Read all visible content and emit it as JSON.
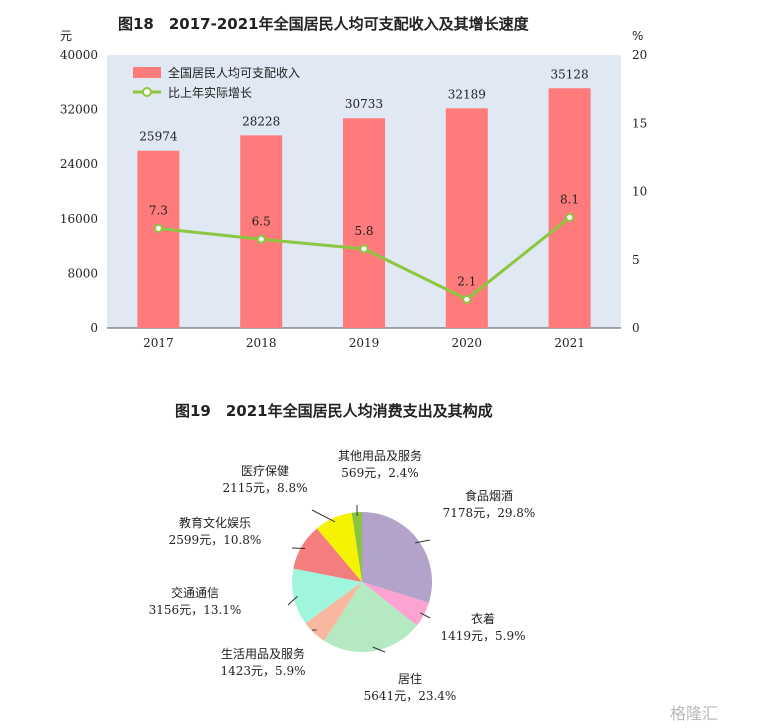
{
  "chart_data": [
    {
      "type": "bar+line",
      "title": "图18　2017-2021年全国居民人均可支配收入及其增长速度",
      "categories": [
        "2017",
        "2018",
        "2019",
        "2020",
        "2021"
      ],
      "left_unit": "元",
      "right_unit": "%",
      "left_ticks": [
        "0",
        "8000",
        "16000",
        "24000",
        "32000",
        "40000"
      ],
      "right_ticks": [
        "0",
        "5",
        "10",
        "15",
        "20"
      ],
      "ylim_left": [
        0,
        40000
      ],
      "ylim_right": [
        0,
        20
      ],
      "series": [
        {
          "name": "全国居民人均可支配收入",
          "kind": "bar",
          "axis": "left",
          "values": [
            25974,
            28228,
            30733,
            32189,
            35128
          ],
          "labels": [
            "25974",
            "28228",
            "30733",
            "32189",
            "35128"
          ]
        },
        {
          "name": "比上年实际增长",
          "kind": "line",
          "axis": "right",
          "values": [
            7.3,
            6.5,
            5.8,
            2.1,
            8.1
          ],
          "labels": [
            "7.3",
            "6.5",
            "5.8",
            "2.1",
            "8.1"
          ]
        }
      ],
      "legend_position": "top-left",
      "colors": {
        "bar": "#fe7b7b",
        "line": "#8dc63f",
        "plot_bg": "#dfe8f3"
      }
    },
    {
      "type": "pie",
      "title": "图19　2021年全国居民人均消费支出及其构成",
      "slices": [
        {
          "name": "食品烟酒",
          "value": 7178,
          "percent": 29.8,
          "text": "7178元，29.8%",
          "color": "#b3a2c9"
        },
        {
          "name": "衣着",
          "value": 1419,
          "percent": 5.9,
          "text": "1419元，5.9%",
          "color": "#fca3d2"
        },
        {
          "name": "居住",
          "value": 5641,
          "percent": 23.4,
          "text": "5641元，23.4%",
          "color": "#b4e9c1"
        },
        {
          "name": "生活用品及服务",
          "value": 1423,
          "percent": 5.9,
          "text": "1423元，5.9%",
          "color": "#f8b8a0"
        },
        {
          "name": "交通通信",
          "value": 3156,
          "percent": 13.1,
          "text": "3156元，13.1%",
          "color": "#9ff6dc"
        },
        {
          "name": "教育文化娱乐",
          "value": 2599,
          "percent": 10.8,
          "text": "2599元，10.8%",
          "color": "#f47e7e"
        },
        {
          "name": "医疗保健",
          "value": 2115,
          "percent": 8.8,
          "text": "2115元，8.8%",
          "color": "#f5f301"
        },
        {
          "name": "其他用品及服务",
          "value": 569,
          "percent": 2.4,
          "text": "569元，2.4%",
          "color": "#8bc53f"
        }
      ]
    }
  ],
  "watermark": "格隆汇"
}
